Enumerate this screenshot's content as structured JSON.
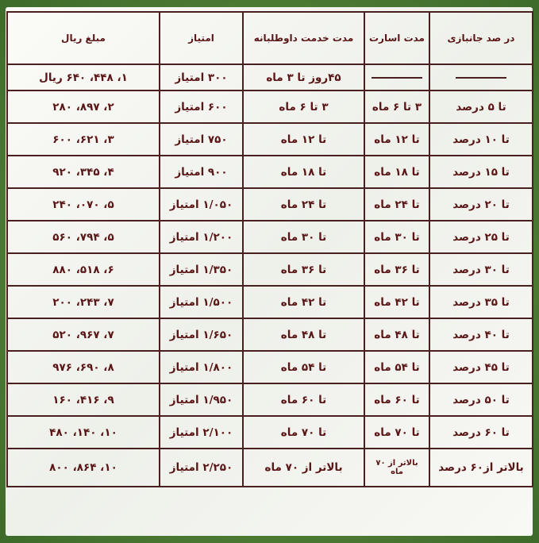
{
  "table": {
    "headers": [
      "در صد جانبازی",
      "مدت اسارت",
      "مدت خدمت داوطلبانه",
      "امتیاز",
      "مبلغ ریال"
    ],
    "rows": [
      {
        "service": "۴۵روز تا ۳ ماه",
        "points": "۳۰۰ امتیاز",
        "amount": "۱، ۴۴۸، ۶۴۰ ریال"
      },
      {
        "disability": "تا ۵ درصد",
        "captivity": "۳ تا ۶ ماه",
        "service": "۳ تا ۶ ماه",
        "points": "۶۰۰ امتیاز",
        "amount": "۲، ۸۹۷، ۲۸۰"
      },
      {
        "disability": "تا ۱۰ درصد",
        "captivity": "تا ۱۲ ماه",
        "service": "تا ۱۲ ماه",
        "points": "۷۵۰ امتیاز",
        "amount": "۳، ۶۲۱، ۶۰۰"
      },
      {
        "disability": "تا ۱۵ درصد",
        "captivity": "تا ۱۸ ماه",
        "service": "تا ۱۸ ماه",
        "points": "۹۰۰ امتیاز",
        "amount": "۴، ۳۴۵، ۹۲۰"
      },
      {
        "disability": "تا ۲۰ درصد",
        "captivity": "تا ۲۴ ماه",
        "service": "تا ۲۴ ماه",
        "points": "۱/۰۵۰ امتیاز",
        "amount": "۵، ۰۷۰، ۲۴۰"
      },
      {
        "disability": "تا ۲۵ درصد",
        "captivity": "تا ۳۰ ماه",
        "service": "تا ۳۰ ماه",
        "points": "۱/۲۰۰ امتیاز",
        "amount": "۵، ۷۹۴، ۵۶۰"
      },
      {
        "disability": "تا ۳۰ درصد",
        "captivity": "تا ۳۶ ماه",
        "service": "تا ۳۶ ماه",
        "points": "۱/۳۵۰ امتیاز",
        "amount": "۶، ۵۱۸، ۸۸۰"
      },
      {
        "disability": "تا ۳۵ درصد",
        "captivity": "تا ۴۲ ماه",
        "service": "تا ۴۲ ماه",
        "points": "۱/۵۰۰ امتیاز",
        "amount": "۷، ۲۴۳، ۲۰۰"
      },
      {
        "disability": "تا ۴۰ درصد",
        "captivity": "تا ۴۸ ماه",
        "service": "تا ۴۸ ماه",
        "points": "۱/۶۵۰ امتیاز",
        "amount": "۷، ۹۶۷، ۵۲۰"
      },
      {
        "disability": "تا ۴۵ درصد",
        "captivity": "تا ۵۴ ماه",
        "service": "تا ۵۴ ماه",
        "points": "۱/۸۰۰ امتیاز",
        "amount": "۸، ۶۹۰، ۹۷۶"
      },
      {
        "disability": "تا ۵۰ درصد",
        "captivity": "تا ۶۰ ماه",
        "service": "تا ۶۰ ماه",
        "points": "۱/۹۵۰ امتیاز",
        "amount": "۹، ۴۱۶، ۱۶۰"
      },
      {
        "disability": "تا ۶۰ درصد",
        "captivity": "تا ۷۰ ماه",
        "service": "تا ۷۰ ماه",
        "points": "۲/۱۰۰ امتیاز",
        "amount": "۱۰، ۱۴۰، ۴۸۰"
      },
      {
        "disability": "بالاتر از۶۰ درصد",
        "captivity": "بالاتر از ۷۰ ماه",
        "service": "بالاتر از ۷۰ ماه",
        "points": "۲/۲۵۰ امتیاز",
        "amount": "۱۰، ۸۶۴، ۸۰۰"
      }
    ]
  }
}
